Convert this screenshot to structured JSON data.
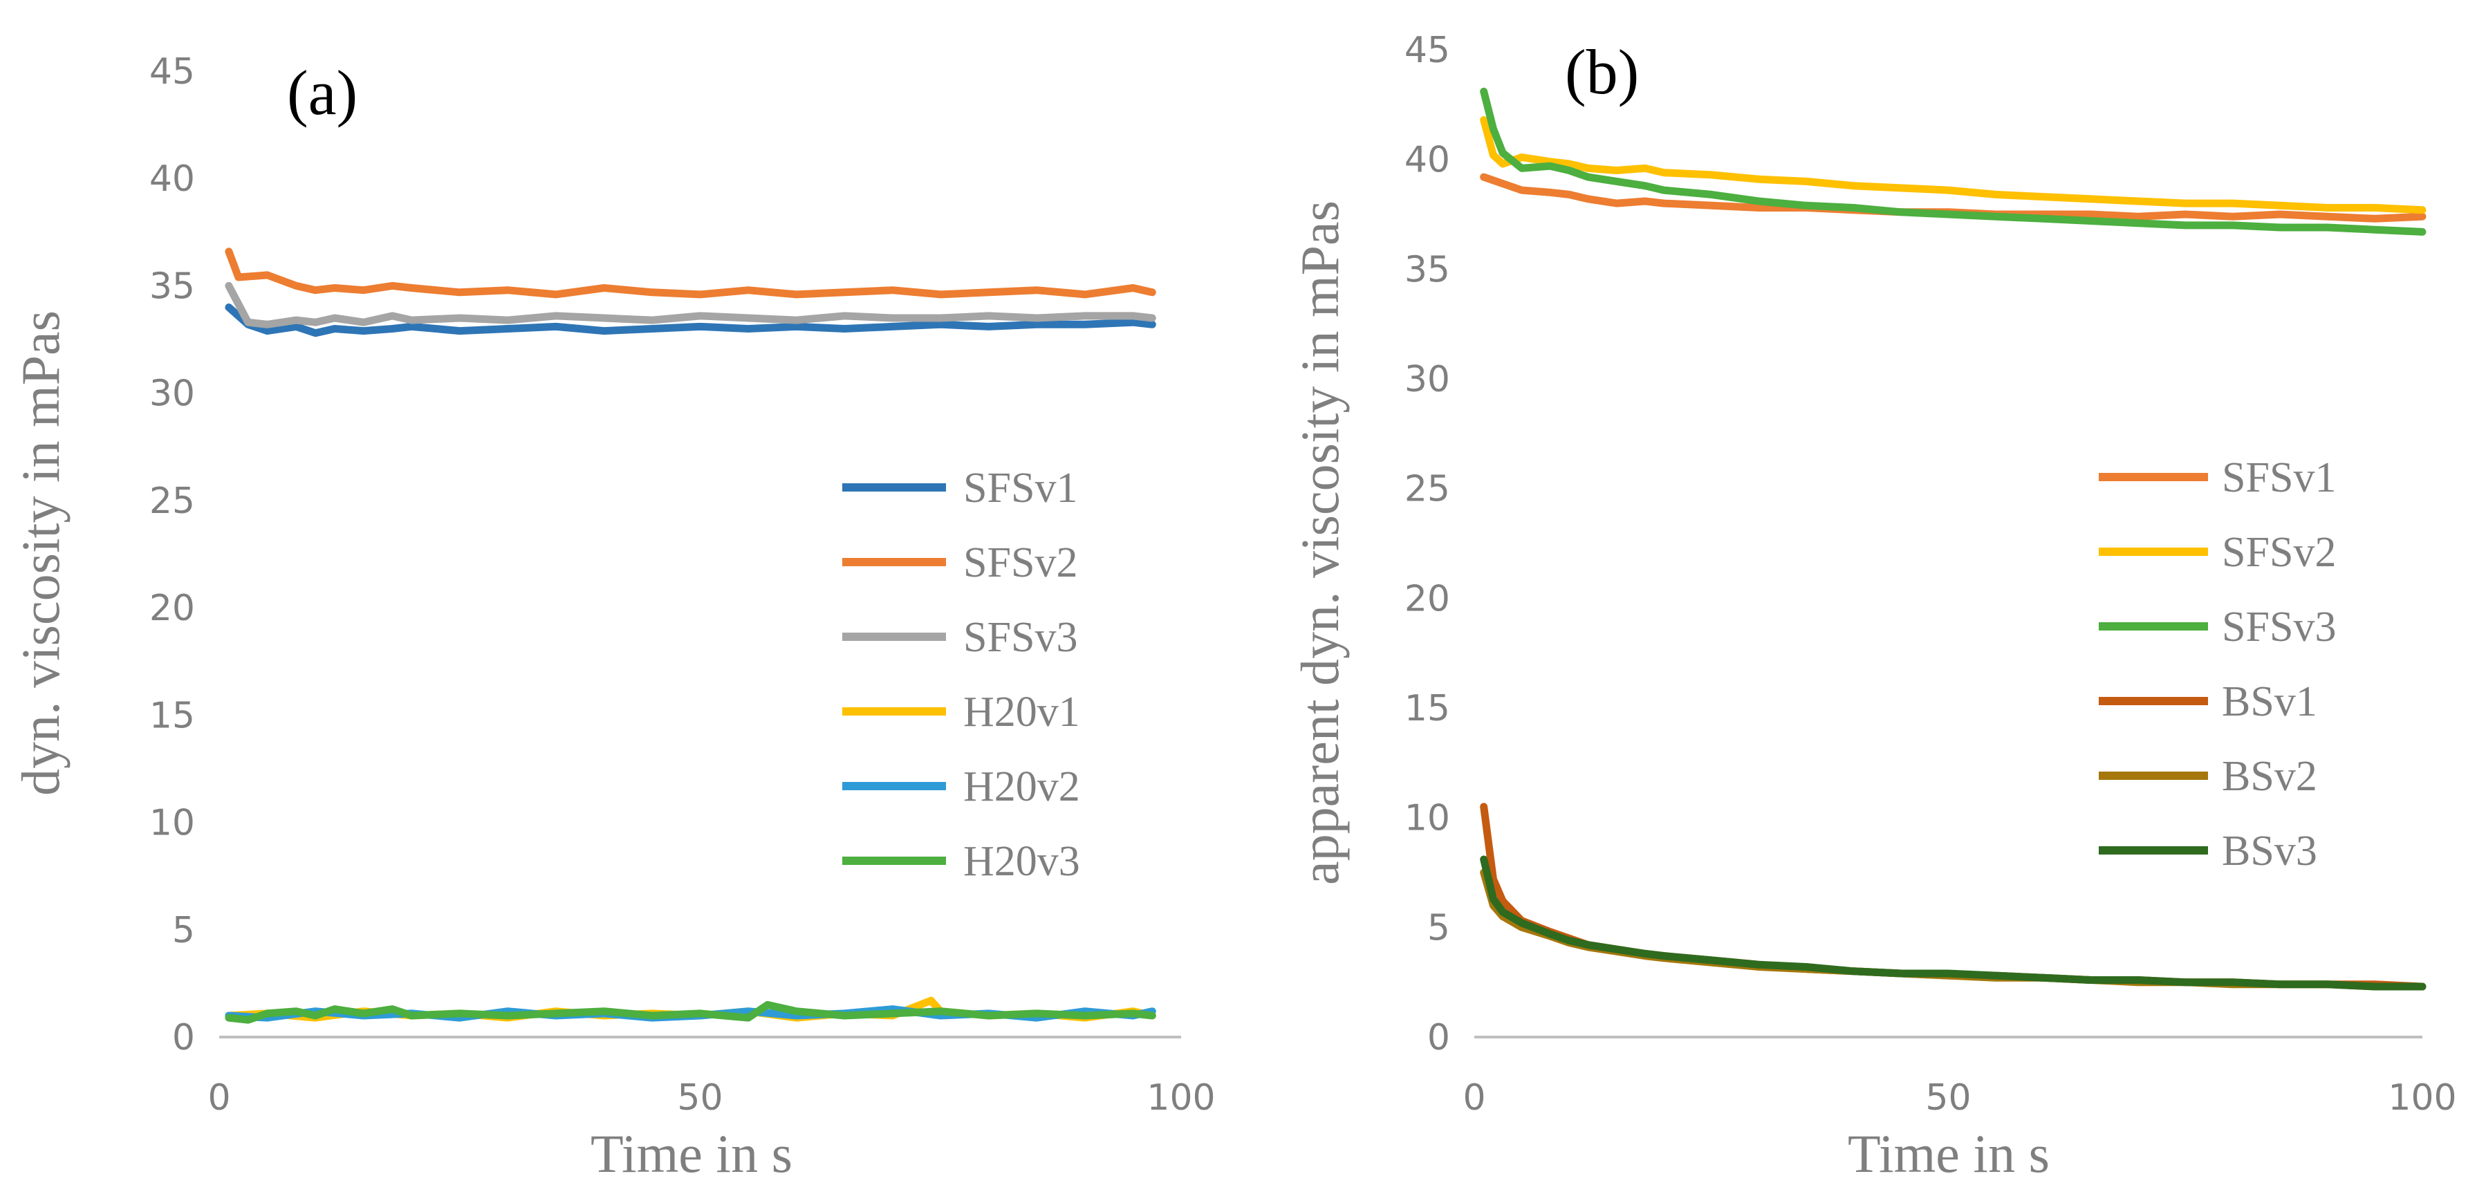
{
  "chart_data": [
    {
      "type": "line",
      "panel_label": "(a)",
      "xlabel": "Time in s",
      "ylabel": "dyn. viscosity in mPas",
      "xlim": [
        0,
        100
      ],
      "ylim": [
        0,
        45
      ],
      "xticks": [
        "0",
        "50",
        "100"
      ],
      "yticks": [
        "0",
        "5",
        "10",
        "15",
        "20",
        "25",
        "30",
        "35",
        "40",
        "45"
      ],
      "grid": false,
      "legend_position": "right",
      "series": [
        {
          "name": "SFSv1",
          "color": "#2e75b6",
          "x": [
            1,
            3,
            5,
            8,
            10,
            12,
            15,
            18,
            20,
            25,
            30,
            35,
            40,
            45,
            50,
            55,
            60,
            65,
            70,
            75,
            80,
            85,
            90,
            95,
            97
          ],
          "values": [
            34.0,
            33.2,
            32.9,
            33.1,
            32.8,
            33.0,
            32.9,
            33.0,
            33.1,
            32.9,
            33.0,
            33.1,
            32.9,
            33.0,
            33.1,
            33.0,
            33.1,
            33.0,
            33.1,
            33.2,
            33.1,
            33.2,
            33.2,
            33.3,
            33.2
          ]
        },
        {
          "name": "SFSv2",
          "color": "#ed7d31",
          "x": [
            1,
            2,
            5,
            8,
            10,
            12,
            15,
            18,
            20,
            25,
            30,
            35,
            40,
            45,
            50,
            55,
            60,
            65,
            70,
            75,
            80,
            85,
            90,
            95,
            97
          ],
          "values": [
            36.6,
            35.4,
            35.5,
            35.0,
            34.8,
            34.9,
            34.8,
            35.0,
            34.9,
            34.7,
            34.8,
            34.6,
            34.9,
            34.7,
            34.6,
            34.8,
            34.6,
            34.7,
            34.8,
            34.6,
            34.7,
            34.8,
            34.6,
            34.9,
            34.7
          ]
        },
        {
          "name": "SFSv3",
          "color": "#a5a5a5",
          "x": [
            1,
            3,
            5,
            8,
            10,
            12,
            15,
            18,
            20,
            25,
            30,
            35,
            40,
            45,
            50,
            55,
            60,
            65,
            70,
            75,
            80,
            85,
            90,
            95,
            97
          ],
          "values": [
            35.0,
            33.3,
            33.2,
            33.4,
            33.3,
            33.5,
            33.3,
            33.6,
            33.4,
            33.5,
            33.4,
            33.6,
            33.5,
            33.4,
            33.6,
            33.5,
            33.4,
            33.6,
            33.5,
            33.5,
            33.6,
            33.5,
            33.6,
            33.6,
            33.5
          ]
        },
        {
          "name": "H20v1",
          "color": "#ffc000",
          "x": [
            1,
            5,
            10,
            15,
            20,
            25,
            30,
            35,
            40,
            45,
            50,
            55,
            60,
            65,
            70,
            74,
            75,
            80,
            85,
            90,
            95,
            97
          ],
          "values": [
            1.0,
            1.1,
            0.9,
            1.2,
            1.0,
            1.1,
            0.9,
            1.2,
            1.0,
            1.1,
            1.0,
            1.2,
            0.9,
            1.1,
            1.0,
            1.7,
            1.2,
            1.0,
            1.1,
            0.9,
            1.2,
            1.0
          ]
        },
        {
          "name": "H20v2",
          "color": "#2e9bd6",
          "x": [
            1,
            5,
            10,
            15,
            20,
            25,
            30,
            35,
            40,
            45,
            50,
            55,
            60,
            65,
            70,
            75,
            80,
            85,
            90,
            95,
            97
          ],
          "values": [
            1.0,
            0.9,
            1.2,
            1.0,
            1.1,
            0.9,
            1.2,
            1.0,
            1.1,
            0.9,
            1.0,
            1.2,
            1.0,
            1.1,
            1.3,
            1.0,
            1.1,
            0.9,
            1.2,
            1.0,
            1.2
          ]
        },
        {
          "name": "H20v3",
          "color": "#4caf3f",
          "x": [
            1,
            3,
            5,
            8,
            10,
            12,
            15,
            18,
            20,
            25,
            30,
            35,
            40,
            45,
            50,
            55,
            57,
            60,
            65,
            70,
            75,
            80,
            85,
            90,
            95,
            97
          ],
          "values": [
            0.9,
            0.8,
            1.1,
            1.2,
            1.0,
            1.3,
            1.1,
            1.3,
            1.0,
            1.1,
            1.0,
            1.1,
            1.2,
            1.0,
            1.1,
            0.9,
            1.5,
            1.2,
            1.0,
            1.1,
            1.2,
            1.0,
            1.1,
            1.0,
            1.1,
            1.0
          ]
        }
      ]
    },
    {
      "type": "line",
      "panel_label": "(b)",
      "xlabel": "Time in s",
      "ylabel": "apparent dyn. viscosity in mPas",
      "xlim": [
        0,
        100
      ],
      "ylim": [
        0,
        45
      ],
      "xticks": [
        "0",
        "50",
        "100"
      ],
      "yticks": [
        "0",
        "5",
        "10",
        "15",
        "20",
        "25",
        "30",
        "35",
        "40",
        "45"
      ],
      "grid": false,
      "legend_position": "right",
      "series": [
        {
          "name": "SFSv1",
          "color": "#ed7d31",
          "x": [
            1,
            3,
            5,
            8,
            10,
            12,
            15,
            18,
            20,
            25,
            30,
            35,
            40,
            45,
            50,
            55,
            60,
            65,
            70,
            75,
            80,
            85,
            90,
            95,
            100
          ],
          "values": [
            39.2,
            38.9,
            38.6,
            38.5,
            38.4,
            38.2,
            38.0,
            38.1,
            38.0,
            37.9,
            37.8,
            37.8,
            37.7,
            37.6,
            37.6,
            37.5,
            37.5,
            37.5,
            37.4,
            37.5,
            37.4,
            37.5,
            37.4,
            37.3,
            37.4
          ]
        },
        {
          "name": "SFSv2",
          "color": "#ffc000",
          "x": [
            1,
            2,
            3,
            5,
            8,
            10,
            12,
            15,
            18,
            20,
            25,
            30,
            35,
            40,
            45,
            50,
            55,
            60,
            65,
            70,
            75,
            80,
            85,
            90,
            95,
            100
          ],
          "values": [
            41.8,
            40.2,
            39.8,
            40.1,
            39.9,
            39.8,
            39.6,
            39.5,
            39.6,
            39.4,
            39.3,
            39.1,
            39.0,
            38.8,
            38.7,
            38.6,
            38.4,
            38.3,
            38.2,
            38.1,
            38.0,
            38.0,
            37.9,
            37.8,
            37.8,
            37.7
          ]
        },
        {
          "name": "SFSv3",
          "color": "#4caf3f",
          "x": [
            1,
            2,
            3,
            5,
            8,
            10,
            12,
            15,
            18,
            20,
            25,
            30,
            35,
            40,
            45,
            50,
            55,
            60,
            65,
            70,
            75,
            80,
            85,
            90,
            95,
            100
          ],
          "values": [
            43.1,
            41.4,
            40.3,
            39.6,
            39.7,
            39.5,
            39.2,
            39.0,
            38.8,
            38.6,
            38.4,
            38.1,
            37.9,
            37.8,
            37.6,
            37.5,
            37.4,
            37.3,
            37.2,
            37.1,
            37.0,
            37.0,
            36.9,
            36.9,
            36.8,
            36.7
          ]
        },
        {
          "name": "BSv1",
          "color": "#c55a11",
          "x": [
            1,
            2,
            3,
            5,
            8,
            10,
            12,
            15,
            18,
            20,
            25,
            30,
            35,
            40,
            45,
            50,
            55,
            60,
            65,
            70,
            75,
            80,
            85,
            90,
            95,
            100
          ],
          "values": [
            10.5,
            7.2,
            6.2,
            5.3,
            4.8,
            4.5,
            4.2,
            4.0,
            3.8,
            3.7,
            3.5,
            3.3,
            3.1,
            3.0,
            2.9,
            2.8,
            2.8,
            2.7,
            2.6,
            2.6,
            2.5,
            2.5,
            2.4,
            2.4,
            2.4,
            2.3
          ]
        },
        {
          "name": "BSv2",
          "color": "#a5770c",
          "x": [
            1,
            2,
            3,
            5,
            8,
            10,
            12,
            15,
            18,
            20,
            25,
            30,
            35,
            40,
            45,
            50,
            55,
            60,
            65,
            70,
            75,
            80,
            85,
            90,
            95,
            100
          ],
          "values": [
            7.5,
            6.0,
            5.5,
            5.0,
            4.6,
            4.3,
            4.1,
            3.9,
            3.7,
            3.6,
            3.4,
            3.2,
            3.1,
            3.0,
            2.9,
            2.8,
            2.7,
            2.7,
            2.6,
            2.5,
            2.5,
            2.4,
            2.4,
            2.4,
            2.3,
            2.3
          ]
        },
        {
          "name": "BSv3",
          "color": "#2e6b1f",
          "x": [
            1,
            2,
            3,
            5,
            8,
            10,
            12,
            15,
            18,
            20,
            25,
            30,
            35,
            40,
            45,
            50,
            55,
            60,
            65,
            70,
            75,
            80,
            85,
            90,
            95,
            100
          ],
          "values": [
            8.1,
            6.3,
            5.7,
            5.2,
            4.7,
            4.4,
            4.2,
            4.0,
            3.8,
            3.7,
            3.5,
            3.3,
            3.2,
            3.0,
            2.9,
            2.9,
            2.8,
            2.7,
            2.6,
            2.6,
            2.5,
            2.5,
            2.4,
            2.4,
            2.3,
            2.3
          ]
        }
      ]
    }
  ]
}
